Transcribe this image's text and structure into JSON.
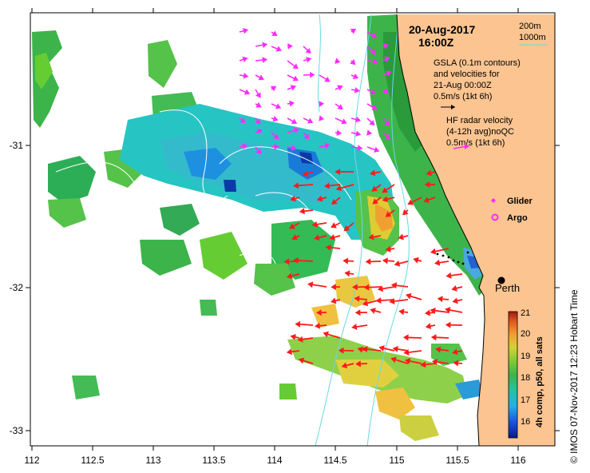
{
  "header": {
    "date": "20-Aug-2017",
    "time": "16:00Z"
  },
  "depth_legend": {
    "line1": "200m",
    "line2": "1000m"
  },
  "gsla_legend": {
    "line1": "GSLA (0.1m contours)",
    "line2": "and velocities for",
    "line3": "21-Aug 00:00Z",
    "line4": "0.5m/s (1kt 6h)"
  },
  "radar_legend": {
    "line1": "HF radar velocity",
    "line2": "(4-12h avg)noQC",
    "line3": "0.5m/s (1kt 6h)"
  },
  "markers": {
    "glider": "Glider",
    "argo": "Argo",
    "city": "Perth"
  },
  "axes": {
    "x_ticks": [
      "112",
      "112.5",
      "113",
      "113.5",
      "114",
      "114.5",
      "115",
      "115.5",
      "116"
    ],
    "y_ticks": [
      "-31",
      "-32",
      "-33"
    ]
  },
  "colorbar": {
    "label": "4h comp, p50, all sats",
    "ticks": [
      "21",
      "20",
      "19",
      "18",
      "17",
      "16"
    ]
  },
  "side_text": "© IMOS 07-Nov-2017 12:23 Hobart Time",
  "colors": {
    "land": "#fbc490",
    "radar_arrow": "#ff1a1a",
    "gsla_arrow": "#ff2bff",
    "contour": "#6ad8e8"
  }
}
